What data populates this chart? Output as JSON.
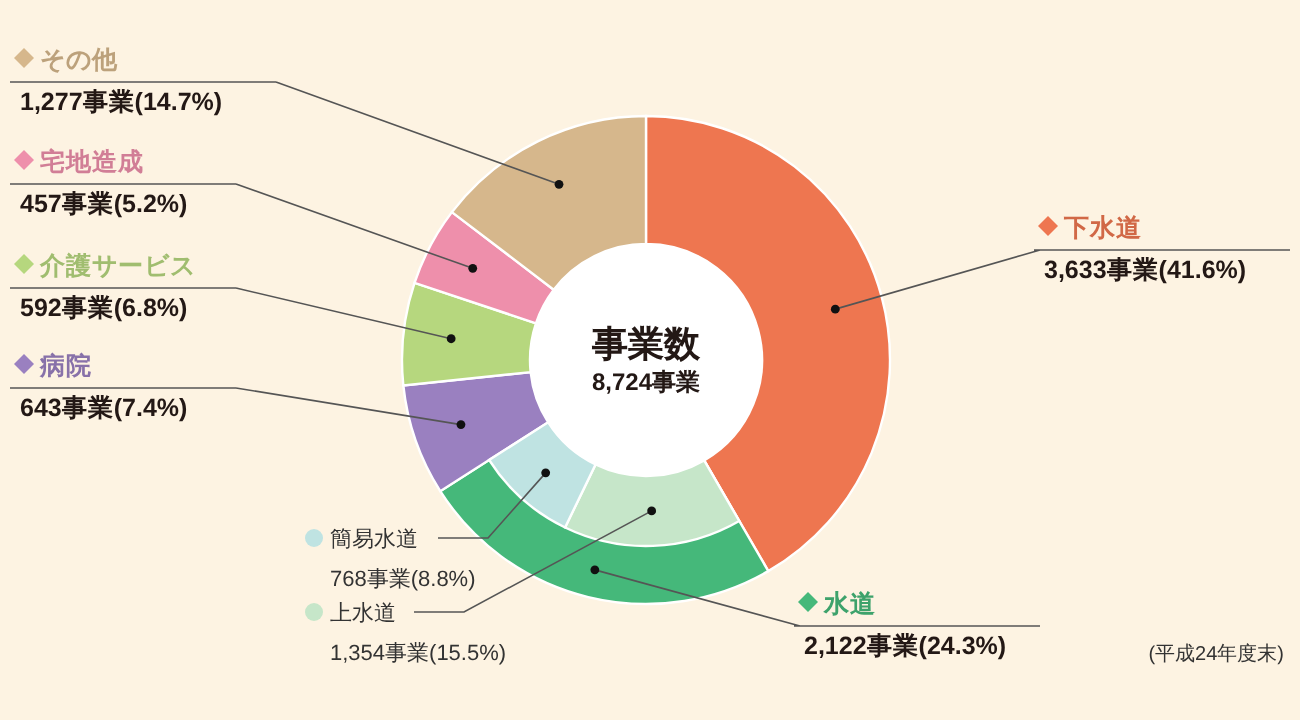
{
  "chart_data": [
    {
      "type": "donut",
      "title": "事業数",
      "subtitle": "8,724事業",
      "categories": [
        "下水道",
        "水道",
        "病院",
        "介護サービス",
        "宅地造成",
        "その他"
      ],
      "values": [
        3633,
        2122,
        643,
        592,
        457,
        1277
      ],
      "value_labels": [
        "3,633事業(41.6%)",
        "2,122事業(24.3%)",
        "643事業(7.4%)",
        "592事業(6.8%)",
        "457事業(5.2%)",
        "1,277事業(14.7%)"
      ],
      "colors": [
        "#ee7650",
        "#45b87a",
        "#9a80c0",
        "#b6d77e",
        "#ee8fab",
        "#d6b78c"
      ],
      "annotations": [
        "(平成24年度末)"
      ],
      "legend": "left"
    },
    {
      "type": "donut",
      "categories": [
        "上水道",
        "簡易水道"
      ],
      "values": [
        1354,
        768
      ],
      "value_labels": [
        "1,354事業(15.5%)",
        "768事業(8.8%)"
      ],
      "colors": [
        "#c6e6c9",
        "#bfe3e2"
      ],
      "legend": "bottom left"
    }
  ]
}
